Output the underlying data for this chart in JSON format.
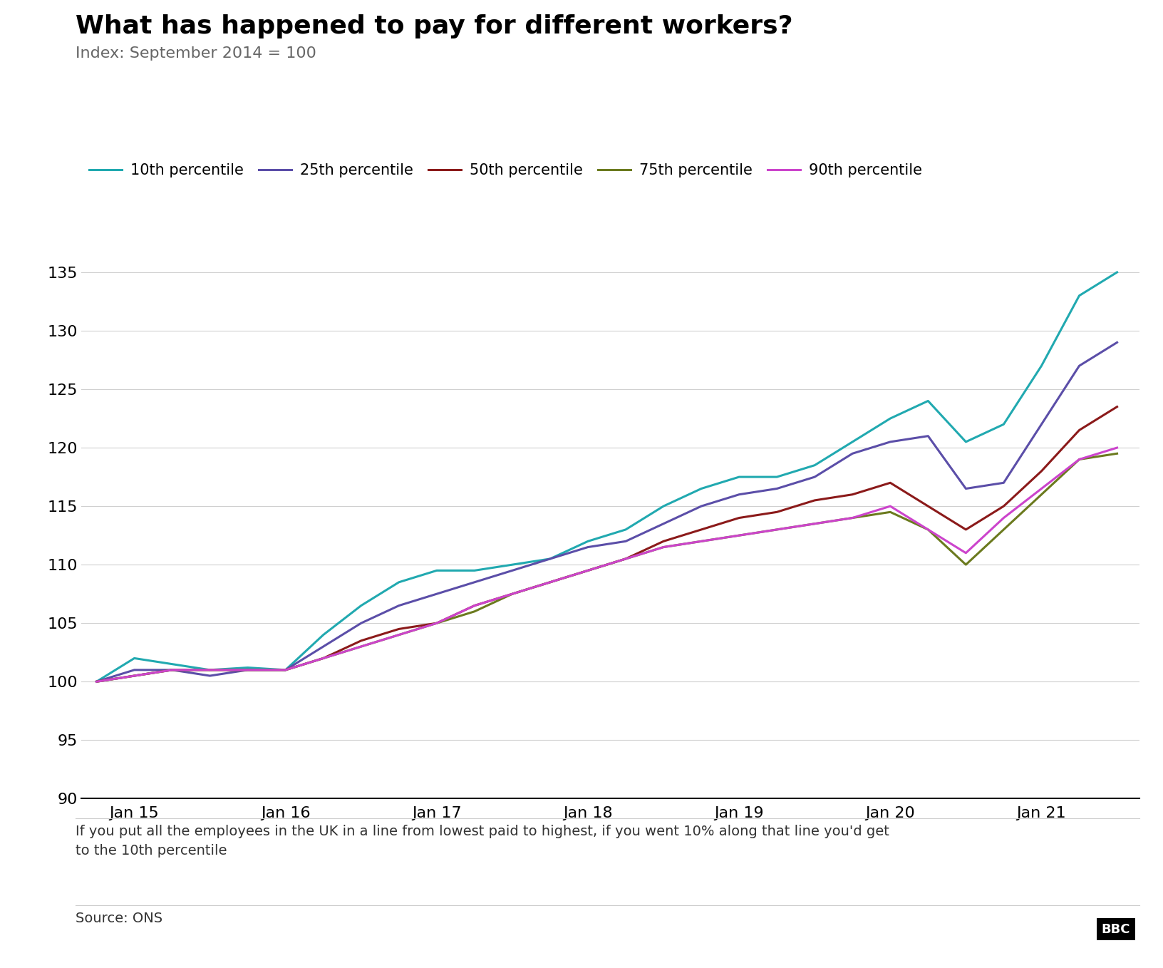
{
  "title": "What has happened to pay for different workers?",
  "subtitle": "Index: September 2014 = 100",
  "footnote": "If you put all the employees in the UK in a line from lowest paid to highest, if you went 10% along that line you'd get\nto the 10th percentile",
  "source": "Source: ONS",
  "background_color": "#ffffff",
  "lines": {
    "10th percentile": {
      "color": "#21a9b0",
      "data_x": [
        2014.75,
        2015.0,
        2015.25,
        2015.5,
        2015.75,
        2016.0,
        2016.25,
        2016.5,
        2016.75,
        2017.0,
        2017.25,
        2017.5,
        2017.75,
        2018.0,
        2018.25,
        2018.5,
        2018.75,
        2019.0,
        2019.25,
        2019.5,
        2019.75,
        2020.0,
        2020.25,
        2020.5,
        2020.75,
        2021.0,
        2021.25,
        2021.5
      ],
      "data_y": [
        100.0,
        102.0,
        101.5,
        101.0,
        101.2,
        101.0,
        104.0,
        106.5,
        108.5,
        109.5,
        109.5,
        110.0,
        110.5,
        112.0,
        113.0,
        115.0,
        116.5,
        117.5,
        117.5,
        118.5,
        120.5,
        122.5,
        124.0,
        120.5,
        122.0,
        127.0,
        133.0,
        135.0
      ]
    },
    "25th percentile": {
      "color": "#5b4ea8",
      "data_x": [
        2014.75,
        2015.0,
        2015.25,
        2015.5,
        2015.75,
        2016.0,
        2016.25,
        2016.5,
        2016.75,
        2017.0,
        2017.25,
        2017.5,
        2017.75,
        2018.0,
        2018.25,
        2018.5,
        2018.75,
        2019.0,
        2019.25,
        2019.5,
        2019.75,
        2020.0,
        2020.25,
        2020.5,
        2020.75,
        2021.0,
        2021.25,
        2021.5
      ],
      "data_y": [
        100.0,
        101.0,
        101.0,
        100.5,
        101.0,
        101.0,
        103.0,
        105.0,
        106.5,
        107.5,
        108.5,
        109.5,
        110.5,
        111.5,
        112.0,
        113.5,
        115.0,
        116.0,
        116.5,
        117.5,
        119.5,
        120.5,
        121.0,
        116.5,
        117.0,
        122.0,
        127.0,
        129.0
      ]
    },
    "50th percentile": {
      "color": "#8b1a1a",
      "data_x": [
        2014.75,
        2015.0,
        2015.25,
        2015.5,
        2015.75,
        2016.0,
        2016.25,
        2016.5,
        2016.75,
        2017.0,
        2017.25,
        2017.5,
        2017.75,
        2018.0,
        2018.25,
        2018.5,
        2018.75,
        2019.0,
        2019.25,
        2019.5,
        2019.75,
        2020.0,
        2020.25,
        2020.5,
        2020.75,
        2021.0,
        2021.25,
        2021.5
      ],
      "data_y": [
        100.0,
        100.5,
        101.0,
        101.0,
        101.0,
        101.0,
        102.0,
        103.5,
        104.5,
        105.0,
        106.5,
        107.5,
        108.5,
        109.5,
        110.5,
        112.0,
        113.0,
        114.0,
        114.5,
        115.5,
        116.0,
        117.0,
        115.0,
        113.0,
        115.0,
        118.0,
        121.5,
        123.5
      ]
    },
    "75th percentile": {
      "color": "#6b7a1e",
      "data_x": [
        2014.75,
        2015.0,
        2015.25,
        2015.5,
        2015.75,
        2016.0,
        2016.25,
        2016.5,
        2016.75,
        2017.0,
        2017.25,
        2017.5,
        2017.75,
        2018.0,
        2018.25,
        2018.5,
        2018.75,
        2019.0,
        2019.25,
        2019.5,
        2019.75,
        2020.0,
        2020.25,
        2020.5,
        2020.75,
        2021.0,
        2021.25,
        2021.5
      ],
      "data_y": [
        100.0,
        100.5,
        101.0,
        101.0,
        101.0,
        101.0,
        102.0,
        103.0,
        104.0,
        105.0,
        106.0,
        107.5,
        108.5,
        109.5,
        110.5,
        111.5,
        112.0,
        112.5,
        113.0,
        113.5,
        114.0,
        114.5,
        113.0,
        110.0,
        113.0,
        116.0,
        119.0,
        119.5
      ]
    },
    "90th percentile": {
      "color": "#cc44cc",
      "data_x": [
        2014.75,
        2015.0,
        2015.25,
        2015.5,
        2015.75,
        2016.0,
        2016.25,
        2016.5,
        2016.75,
        2017.0,
        2017.25,
        2017.5,
        2017.75,
        2018.0,
        2018.25,
        2018.5,
        2018.75,
        2019.0,
        2019.25,
        2019.5,
        2019.75,
        2020.0,
        2020.25,
        2020.5,
        2020.75,
        2021.0,
        2021.25,
        2021.5
      ],
      "data_y": [
        100.0,
        100.5,
        101.0,
        101.0,
        101.0,
        101.0,
        102.0,
        103.0,
        104.0,
        105.0,
        106.5,
        107.5,
        108.5,
        109.5,
        110.5,
        111.5,
        112.0,
        112.5,
        113.0,
        113.5,
        114.0,
        115.0,
        113.0,
        111.0,
        114.0,
        116.5,
        119.0,
        120.0
      ]
    }
  },
  "ylim": [
    90,
    138
  ],
  "yticks": [
    90,
    95,
    100,
    105,
    110,
    115,
    120,
    125,
    130,
    135
  ],
  "xlim": [
    2014.65,
    2021.65
  ],
  "xtick_positions": [
    2015.0,
    2016.0,
    2017.0,
    2018.0,
    2019.0,
    2020.0,
    2021.0
  ],
  "xtick_labels": [
    "Jan 15",
    "Jan 16",
    "Jan 17",
    "Jan 18",
    "Jan 19",
    "Jan 20",
    "Jan 21"
  ],
  "line_width": 2.2,
  "legend_order": [
    "10th percentile",
    "25th percentile",
    "50th percentile",
    "75th percentile",
    "90th percentile"
  ],
  "title_fontsize": 26,
  "subtitle_fontsize": 16,
  "tick_fontsize": 16,
  "legend_fontsize": 15,
  "footnote_fontsize": 14,
  "source_fontsize": 14
}
